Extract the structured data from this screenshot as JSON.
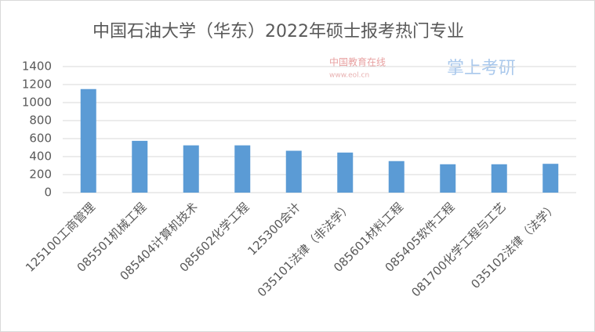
{
  "chart_data": {
    "type": "bar",
    "title": "中国石油大学（华东）2022年硕士报考热门专业",
    "watermarks": [
      "中国教育在线",
      "www.eol.cn",
      "掌上考研"
    ],
    "categories": [
      "125100工商管理",
      "085501机械工程",
      "085404计算机技术",
      "085602化学工程",
      "125300会计",
      "035101法律（非法学）",
      "085601材料工程",
      "085405软件工程",
      "081700化学工程与工艺",
      "035102法律（法学）"
    ],
    "values": [
      1150,
      575,
      525,
      525,
      465,
      445,
      350,
      315,
      315,
      320
    ],
    "color": "#5b9bd5",
    "ylim": [
      0,
      1400
    ],
    "yticks": [
      0,
      200,
      400,
      600,
      800,
      1000,
      1200,
      1400
    ],
    "grid": true
  }
}
